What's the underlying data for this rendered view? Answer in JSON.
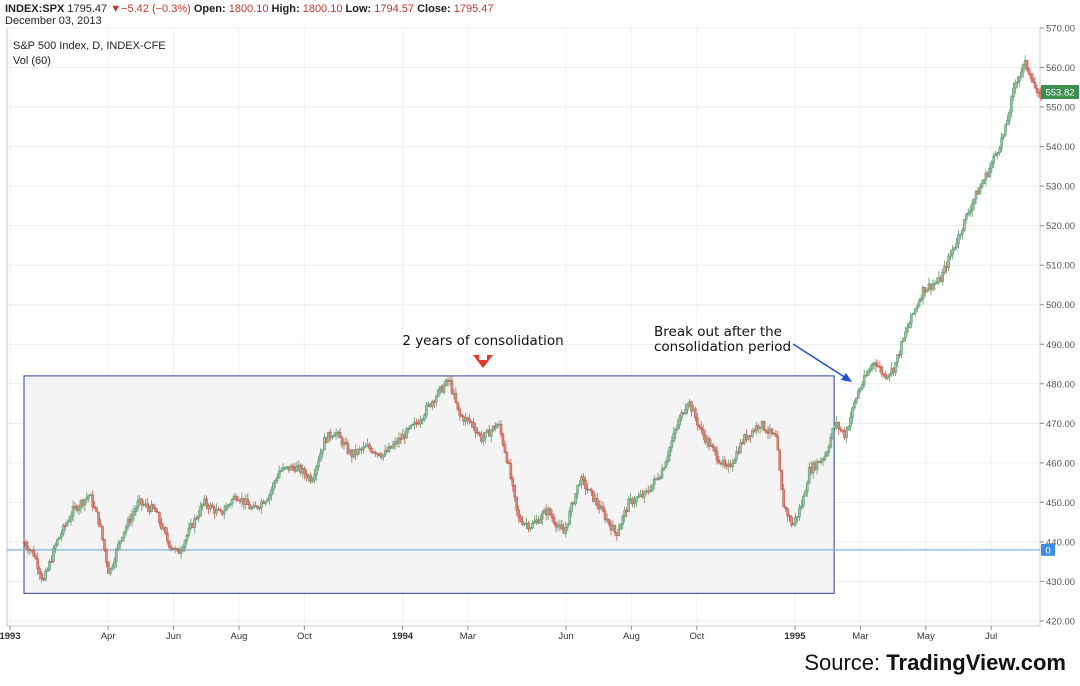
{
  "header": {
    "symbol": "INDEX:SPX",
    "last": "1795.47",
    "change": "▼−5.42 (−0.3%)",
    "open_label": "Open:",
    "open": "1800.10",
    "high_label": "High:",
    "high": "1800.10",
    "low_label": "Low:",
    "low": "1794.57",
    "close_label": "Close:",
    "close": "1795.47",
    "date": "December 03, 2013"
  },
  "legend": {
    "series_name": "S&P 500 Index, D, INDEX-CFE",
    "volume": "Vol (60)"
  },
  "source": {
    "prefix": "Source:",
    "name": "TradingView.com"
  },
  "chart_data": {
    "type": "candlestick",
    "title": "S&P 500 Index, D, INDEX-CFE",
    "y_axis": {
      "min": 420,
      "max": 570,
      "ticks": [
        420,
        430,
        440,
        450,
        460,
        470,
        480,
        490,
        500,
        510,
        520,
        530,
        540,
        550,
        560,
        570
      ],
      "tick_labels": [
        "420.00",
        "430.00",
        "440.00",
        "450.00",
        "460.00",
        "470.00",
        "480.00",
        "490.00",
        "500.00",
        "510.00",
        "520.00",
        "530.00",
        "540.00",
        "550.00",
        "560.00",
        "570.00"
      ]
    },
    "x_axis": {
      "labels": [
        "1993",
        "Apr",
        "Jun",
        "Aug",
        "Oct",
        "1994",
        "Mar",
        "Jun",
        "Aug",
        "Oct",
        "1995",
        "Mar",
        "May",
        "Jul"
      ],
      "label_months": [
        0,
        3,
        5,
        7,
        9,
        12,
        14,
        17,
        19,
        21,
        24,
        26,
        28,
        30
      ],
      "bold_labels": [
        "1993",
        "1994",
        "1995"
      ],
      "month_range": [
        0,
        31.4
      ]
    },
    "price_path": [
      [
        0,
        440
      ],
      [
        0.3,
        437
      ],
      [
        0.6,
        430
      ],
      [
        1.0,
        440
      ],
      [
        1.5,
        448
      ],
      [
        2.0,
        452
      ],
      [
        2.3,
        445
      ],
      [
        2.6,
        432
      ],
      [
        3.0,
        442
      ],
      [
        3.5,
        450
      ],
      [
        4.0,
        448
      ],
      [
        4.4,
        440
      ],
      [
        4.7,
        437
      ],
      [
        5.0,
        442
      ],
      [
        5.5,
        450
      ],
      [
        6.0,
        447
      ],
      [
        6.5,
        452
      ],
      [
        7.0,
        448
      ],
      [
        7.5,
        452
      ],
      [
        7.8,
        458
      ],
      [
        8.3,
        459
      ],
      [
        8.8,
        456
      ],
      [
        9.2,
        466
      ],
      [
        9.5,
        468
      ],
      [
        10.0,
        462
      ],
      [
        10.5,
        464
      ],
      [
        11.0,
        462
      ],
      [
        11.5,
        466
      ],
      [
        12.0,
        470
      ],
      [
        12.5,
        476
      ],
      [
        13.0,
        481
      ],
      [
        13.3,
        472
      ],
      [
        13.7,
        470
      ],
      [
        14.0,
        466
      ],
      [
        14.5,
        470
      ],
      [
        14.8,
        460
      ],
      [
        15.1,
        446
      ],
      [
        15.5,
        444
      ],
      [
        16.0,
        448
      ],
      [
        16.5,
        442
      ],
      [
        17.0,
        456
      ],
      [
        17.5,
        450
      ],
      [
        17.8,
        446
      ],
      [
        18.1,
        442
      ],
      [
        18.5,
        450
      ],
      [
        19.0,
        452
      ],
      [
        19.5,
        458
      ],
      [
        20.0,
        470
      ],
      [
        20.3,
        476
      ],
      [
        20.7,
        468
      ],
      [
        21.0,
        464
      ],
      [
        21.5,
        458
      ],
      [
        22.0,
        466
      ],
      [
        22.5,
        470
      ],
      [
        23.0,
        466
      ],
      [
        23.2,
        450
      ],
      [
        23.5,
        444
      ],
      [
        23.8,
        450
      ],
      [
        24.0,
        458
      ],
      [
        24.5,
        462
      ],
      [
        24.8,
        470
      ],
      [
        25.1,
        467
      ],
      [
        25.5,
        478
      ],
      [
        26.0,
        486
      ],
      [
        26.3,
        482
      ],
      [
        26.6,
        484
      ],
      [
        27.0,
        494
      ],
      [
        27.5,
        504
      ],
      [
        28.0,
        506
      ],
      [
        28.5,
        516
      ],
      [
        29.0,
        526
      ],
      [
        29.5,
        534
      ],
      [
        30.0,
        544
      ],
      [
        30.3,
        556
      ],
      [
        30.6,
        561
      ],
      [
        30.8,
        558
      ],
      [
        31.0,
        552
      ],
      [
        31.15,
        554
      ]
    ],
    "last_price": "553.82",
    "horizontal_line": {
      "value": 438,
      "label": "0"
    },
    "annotations": [
      {
        "text": "2 years of consolidation",
        "type": "box",
        "x_range": [
          0,
          24.8
        ],
        "y_range": [
          427,
          482
        ]
      },
      {
        "text": "Break out after the consolidation period",
        "lines": [
          "Break out after the",
          "consolidation period"
        ],
        "type": "arrow",
        "target_month": 25.0
      }
    ],
    "colors": {
      "up": "#5b9c6f",
      "down": "#c45a4c",
      "up_fill": "#9dc0a8",
      "down_fill": "#d88a80",
      "tag": "#3d8f4f",
      "hline": "#7fb3e0",
      "hline_tag": "#3a8ee6",
      "box_stroke": "#2b3f8f",
      "arrow_red": "#e03a26",
      "arrow_blue": "#1f4ed1"
    }
  }
}
